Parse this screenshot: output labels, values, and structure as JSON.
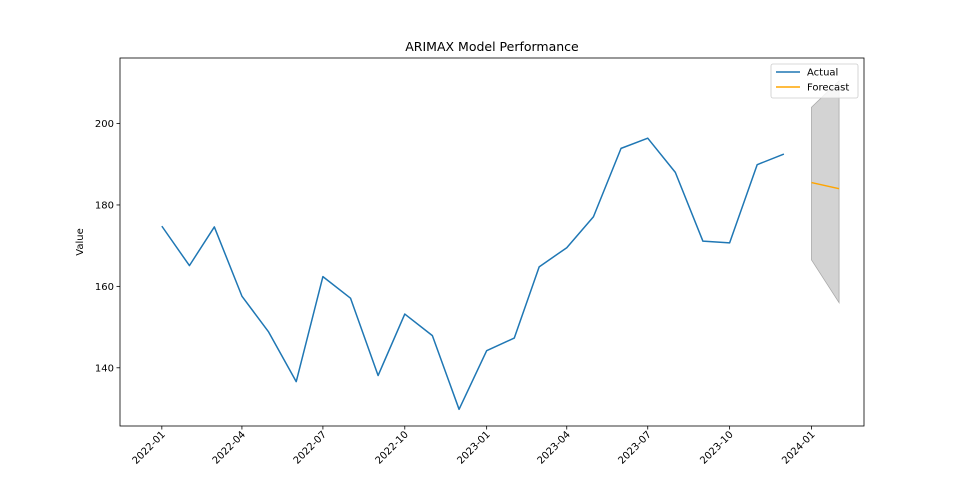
{
  "chart_data": {
    "type": "line",
    "title": "ARIMAX Model Performance",
    "xlabel": "",
    "ylabel": "Value",
    "xlim": [
      "2021-11-15",
      "2024-02-29"
    ],
    "ylim": [
      125.7,
      216.1
    ],
    "x_ticks": [
      "2022-01",
      "2022-04",
      "2022-07",
      "2022-10",
      "2023-01",
      "2023-04",
      "2023-07",
      "2023-10",
      "2024-01"
    ],
    "y_ticks": [
      140,
      160,
      180,
      200
    ],
    "grid": false,
    "legend_position": "top-right",
    "colors": {
      "actual": "#1f77b4",
      "forecast": "#ffa500",
      "interval": "#d3d3d3"
    },
    "series": [
      {
        "name": "Actual",
        "x": [
          "2022-01-01",
          "2022-02-01",
          "2022-03-01",
          "2022-04-01",
          "2022-05-01",
          "2022-06-01",
          "2022-07-01",
          "2022-08-01",
          "2022-09-01",
          "2022-10-01",
          "2022-11-01",
          "2022-12-01",
          "2023-01-01",
          "2023-02-01",
          "2023-03-01",
          "2023-04-01",
          "2023-05-01",
          "2023-06-01",
          "2023-07-01",
          "2023-08-01",
          "2023-09-01",
          "2023-10-01",
          "2023-11-01",
          "2023-12-01"
        ],
        "values": [
          174.8,
          165.1,
          174.6,
          157.6,
          148.8,
          136.6,
          162.4,
          157.1,
          138.1,
          153.2,
          147.9,
          129.8,
          144.2,
          147.3,
          164.8,
          169.5,
          177.1,
          193.9,
          196.4,
          188.0,
          171.1,
          170.7,
          189.9,
          192.5
        ]
      },
      {
        "name": "Forecast",
        "x": [
          "2024-01-01",
          "2024-02-01"
        ],
        "values": [
          185.5,
          184.0
        ],
        "lower": [
          166.5,
          156.0
        ],
        "upper": [
          204.0,
          210.5
        ]
      }
    ]
  }
}
